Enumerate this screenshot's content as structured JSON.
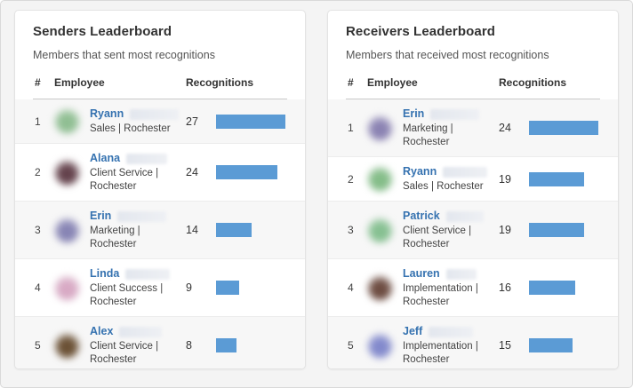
{
  "colors": {
    "bar": "#5b9bd5",
    "link": "#3572b0",
    "page_bg": "#f4f4f4",
    "row_stripe": "#f7f7f7"
  },
  "panels": [
    {
      "title": "Senders Leaderboard",
      "subtitle": "Members that sent most recognitions",
      "columns": {
        "rank": "#",
        "employee": "Employee",
        "recognitions": "Recognitions"
      },
      "max_value": 27,
      "rows": [
        {
          "rank": "1",
          "first_name": "Ryann",
          "department": "Sales | Rochester",
          "count": "27",
          "value": 27,
          "avatar_color": "#8fbe92",
          "blur_width": 55
        },
        {
          "rank": "2",
          "first_name": "Alana",
          "department": "Client Service | Rochester",
          "count": "24",
          "value": 24,
          "avatar_color": "#64424c",
          "blur_width": 46
        },
        {
          "rank": "3",
          "first_name": "Erin",
          "department": "Marketing | Rochester",
          "count": "14",
          "value": 14,
          "avatar_color": "#8784b4",
          "blur_width": 55
        },
        {
          "rank": "4",
          "first_name": "Linda",
          "department": "Client Success | Rochester",
          "count": "9",
          "value": 9,
          "avatar_color": "#d8a9c4",
          "blur_width": 50
        },
        {
          "rank": "5",
          "first_name": "Alex",
          "department": "Client Service | Rochester",
          "count": "8",
          "value": 8,
          "avatar_color": "#6b5135",
          "blur_width": 48
        }
      ]
    },
    {
      "title": "Receivers Leaderboard",
      "subtitle": "Members that received most recognitions",
      "columns": {
        "rank": "#",
        "employee": "Employee",
        "recognitions": "Recognitions"
      },
      "max_value": 24,
      "rows": [
        {
          "rank": "1",
          "first_name": "Erin",
          "department": "Marketing | Rochester",
          "count": "24",
          "value": 24,
          "avatar_color": "#8a82b2",
          "blur_width": 55
        },
        {
          "rank": "2",
          "first_name": "Ryann",
          "department": "Sales | Rochester",
          "count": "19",
          "value": 19,
          "avatar_color": "#84bd88",
          "blur_width": 50
        },
        {
          "rank": "3",
          "first_name": "Patrick",
          "department": "Client Service | Rochester",
          "count": "19",
          "value": 19,
          "avatar_color": "#86c091",
          "blur_width": 42
        },
        {
          "rank": "4",
          "first_name": "Lauren",
          "department": "Implementation | Rochester",
          "count": "16",
          "value": 16,
          "avatar_color": "#6d4c41",
          "blur_width": 34
        },
        {
          "rank": "5",
          "first_name": "Jeff",
          "department": "Implementation | Rochester",
          "count": "15",
          "value": 15,
          "avatar_color": "#8289cc",
          "blur_width": 50
        }
      ]
    }
  ]
}
